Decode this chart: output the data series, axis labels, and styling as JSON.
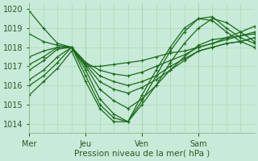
{
  "xlabel": "Pression niveau de la mer( hPa )",
  "bg_color": "#c8ead8",
  "grid_color": "#a8d4b8",
  "line_color": "#1a6b1a",
  "ylim": [
    1013.5,
    1020.3
  ],
  "xlim": [
    0,
    96
  ],
  "yticks": [
    1014,
    1015,
    1016,
    1017,
    1018,
    1019,
    1020
  ],
  "x_tick_positions": [
    0,
    24,
    48,
    72
  ],
  "x_tick_labels": [
    "Mer",
    "Jeu",
    "Ven",
    "Sam"
  ],
  "minor_x_step": 6,
  "series": [
    {
      "x": [
        0,
        6,
        12,
        18,
        24,
        30,
        36,
        42,
        48,
        54,
        60,
        66,
        72,
        78,
        84,
        90,
        96
      ],
      "y": [
        1019.9,
        1019.0,
        1018.2,
        1018.0,
        1017.0,
        1017.0,
        1017.1,
        1017.2,
        1017.3,
        1017.5,
        1017.7,
        1017.8,
        1018.0,
        1018.2,
        1018.5,
        1018.8,
        1019.1
      ]
    },
    {
      "x": [
        0,
        6,
        12,
        18,
        24,
        30,
        36,
        42,
        48,
        54,
        60,
        66,
        72,
        78,
        84,
        90,
        96
      ],
      "y": [
        1018.7,
        1018.3,
        1018.1,
        1018.0,
        1017.2,
        1016.8,
        1016.6,
        1016.5,
        1016.7,
        1017.0,
        1017.3,
        1017.6,
        1018.0,
        1018.2,
        1018.4,
        1018.6,
        1018.8
      ]
    },
    {
      "x": [
        0,
        6,
        12,
        18,
        24,
        30,
        36,
        42,
        48,
        54,
        60,
        66,
        72,
        78,
        84,
        90,
        96
      ],
      "y": [
        1017.5,
        1017.8,
        1018.0,
        1018.0,
        1017.2,
        1016.5,
        1016.2,
        1016.0,
        1016.2,
        1016.5,
        1017.0,
        1017.4,
        1017.8,
        1018.0,
        1018.2,
        1018.3,
        1018.5
      ]
    },
    {
      "x": [
        0,
        6,
        12,
        18,
        24,
        30,
        36,
        42,
        48,
        54,
        60,
        66,
        72,
        78,
        84,
        90,
        96
      ],
      "y": [
        1017.1,
        1017.5,
        1018.0,
        1018.0,
        1017.1,
        1016.2,
        1015.8,
        1015.6,
        1015.9,
        1016.3,
        1016.8,
        1017.3,
        1017.8,
        1018.0,
        1018.2,
        1018.3,
        1018.5
      ]
    },
    {
      "x": [
        0,
        6,
        12,
        18,
        24,
        30,
        36,
        42,
        48,
        54,
        60,
        66,
        72,
        78,
        84,
        90,
        96
      ],
      "y": [
        1016.8,
        1017.3,
        1017.9,
        1018.0,
        1017.0,
        1015.8,
        1015.2,
        1014.8,
        1015.3,
        1016.0,
        1016.8,
        1017.5,
        1018.1,
        1018.4,
        1018.5,
        1018.6,
        1018.7
      ]
    },
    {
      "x": [
        0,
        6,
        12,
        18,
        24,
        30,
        36,
        42,
        48,
        54,
        60,
        66,
        72,
        78,
        84,
        90,
        96
      ],
      "y": [
        1016.3,
        1016.8,
        1017.5,
        1018.0,
        1016.8,
        1015.3,
        1014.5,
        1014.1,
        1015.0,
        1016.0,
        1017.2,
        1018.2,
        1019.0,
        1019.5,
        1019.3,
        1018.8,
        1018.3
      ]
    },
    {
      "x": [
        0,
        6,
        12,
        18,
        24,
        30,
        36,
        42,
        48,
        54,
        60,
        66,
        72,
        78,
        84,
        90,
        96
      ],
      "y": [
        1016.0,
        1016.5,
        1017.2,
        1018.0,
        1016.5,
        1015.0,
        1014.3,
        1014.1,
        1015.2,
        1016.5,
        1017.8,
        1018.8,
        1019.5,
        1019.6,
        1019.0,
        1018.5,
        1018.2
      ]
    },
    {
      "x": [
        0,
        6,
        12,
        18,
        24,
        30,
        36,
        42,
        48,
        54,
        60,
        66,
        72,
        78,
        84,
        90,
        96
      ],
      "y": [
        1015.5,
        1016.2,
        1016.9,
        1017.8,
        1016.2,
        1014.8,
        1014.1,
        1014.1,
        1015.5,
        1016.8,
        1018.0,
        1019.0,
        1019.5,
        1019.4,
        1018.8,
        1018.3,
        1018.0
      ]
    }
  ]
}
